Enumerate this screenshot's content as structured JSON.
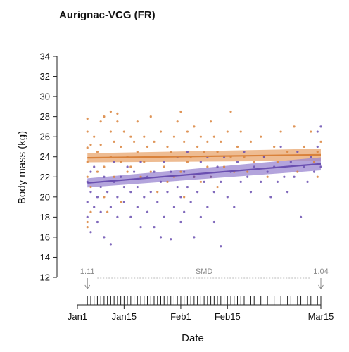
{
  "chart_data": {
    "type": "scatter",
    "title": "Aurignac-VCG (FR)",
    "xlabel": "Date",
    "ylabel": "Body mass (kg)",
    "xlim": [
      0,
      73
    ],
    "ylim": [
      12,
      34
    ],
    "y_ticks": [
      12,
      14,
      16,
      18,
      20,
      22,
      24,
      26,
      28,
      30,
      32,
      34
    ],
    "x_ticks": [
      {
        "day": 0,
        "label": "Jan1"
      },
      {
        "day": 14,
        "label": "Jan15"
      },
      {
        "day": 31,
        "label": "Feb1"
      },
      {
        "day": 45,
        "label": "Feb15"
      },
      {
        "day": 73,
        "label": "Mar15"
      }
    ],
    "colors": {
      "orange": "#d9823b",
      "purple": "#6a4fb0",
      "orange_band": "#e8a56e",
      "purple_band": "#9a86d0",
      "annot": "#8a8a8a"
    },
    "series": [
      {
        "color": "orange",
        "trend": {
          "x0": 3,
          "y0": 23.9,
          "x1": 73,
          "y1": 24.2
        },
        "band_halfwidth": [
          0.45,
          0.6
        ],
        "points": [
          [
            3,
            27.8
          ],
          [
            3,
            26.5
          ],
          [
            4,
            25.2
          ],
          [
            3,
            24.9
          ],
          [
            3,
            23.5
          ],
          [
            3,
            22.0
          ],
          [
            4,
            21.0
          ],
          [
            4,
            18.5
          ],
          [
            3,
            17.5
          ],
          [
            3,
            17.0
          ],
          [
            5,
            26.0
          ],
          [
            6,
            24.5
          ],
          [
            6,
            22.5
          ],
          [
            7,
            27.5
          ],
          [
            7,
            25.2
          ],
          [
            8,
            28.0
          ],
          [
            8,
            23.0
          ],
          [
            8,
            20.0
          ],
          [
            9,
            18.5
          ],
          [
            10,
            28.5
          ],
          [
            10,
            26.5
          ],
          [
            10,
            24.0
          ],
          [
            11,
            25.5
          ],
          [
            11,
            22.0
          ],
          [
            12,
            27.5
          ],
          [
            12,
            28.3
          ],
          [
            13,
            25.0
          ],
          [
            13,
            23.5
          ],
          [
            13,
            19.5
          ],
          [
            14,
            26.5
          ],
          [
            15,
            24.0
          ],
          [
            15,
            22.5
          ],
          [
            16,
            26.0
          ],
          [
            16,
            23.0
          ],
          [
            17,
            25.5
          ],
          [
            18,
            27.5
          ],
          [
            18,
            24.5
          ],
          [
            19,
            22.0
          ],
          [
            20,
            26.0
          ],
          [
            20,
            23.5
          ],
          [
            21,
            25.0
          ],
          [
            22,
            28.0
          ],
          [
            22,
            22.5
          ],
          [
            23,
            25.5
          ],
          [
            24,
            24.0
          ],
          [
            24,
            20.5
          ],
          [
            25,
            26.5
          ],
          [
            26,
            23.0
          ],
          [
            27,
            25.0
          ],
          [
            27,
            21.5
          ],
          [
            28,
            24.5
          ],
          [
            29,
            26.0
          ],
          [
            29,
            22.0
          ],
          [
            30,
            27.5
          ],
          [
            30,
            24.0
          ],
          [
            31,
            28.5
          ],
          [
            31,
            22.5
          ],
          [
            32,
            25.5
          ],
          [
            32,
            20.0
          ],
          [
            33,
            26.5
          ],
          [
            33,
            23.5
          ],
          [
            34,
            24.0
          ],
          [
            35,
            27.0
          ],
          [
            35,
            22.0
          ],
          [
            36,
            25.0
          ],
          [
            37,
            26.0
          ],
          [
            37,
            21.5
          ],
          [
            38,
            24.5
          ],
          [
            39,
            25.5
          ],
          [
            39,
            23.0
          ],
          [
            40,
            27.5
          ],
          [
            40,
            22.0
          ],
          [
            41,
            26.0
          ],
          [
            42,
            24.5
          ],
          [
            42,
            21.0
          ],
          [
            43,
            25.5
          ],
          [
            44,
            23.0
          ],
          [
            45,
            26.5
          ],
          [
            46,
            28.5
          ],
          [
            46,
            24.0
          ],
          [
            47,
            22.5
          ],
          [
            48,
            25.0
          ],
          [
            49,
            26.5
          ],
          [
            50,
            24.0
          ],
          [
            51,
            22.5
          ],
          [
            52,
            25.5
          ],
          [
            53,
            23.5
          ],
          [
            55,
            26.0
          ],
          [
            56,
            24.0
          ],
          [
            57,
            22.0
          ],
          [
            59,
            25.0
          ],
          [
            60,
            23.5
          ],
          [
            61,
            26.5
          ],
          [
            63,
            24.5
          ],
          [
            65,
            27.0
          ],
          [
            66,
            22.5
          ],
          [
            68,
            25.0
          ],
          [
            70,
            26.5
          ],
          [
            71,
            23.5
          ],
          [
            72,
            24.5
          ],
          [
            72,
            22.0
          ],
          [
            73,
            25.5
          ]
        ]
      },
      {
        "color": "purple",
        "trend": {
          "x0": 3,
          "y0": 21.4,
          "x1": 73,
          "y1": 23.3
        },
        "band_halfwidth": [
          0.45,
          0.65
        ],
        "points": [
          [
            3,
            21.5
          ],
          [
            3,
            19.5
          ],
          [
            3,
            18.0
          ],
          [
            4,
            20.5
          ],
          [
            4,
            22.5
          ],
          [
            4,
            16.5
          ],
          [
            5,
            19.0
          ],
          [
            5,
            23.0
          ],
          [
            6,
            20.0
          ],
          [
            6,
            17.5
          ],
          [
            7,
            21.0
          ],
          [
            7,
            18.5
          ],
          [
            8,
            22.0
          ],
          [
            8,
            16.0
          ],
          [
            9,
            20.5
          ],
          [
            10,
            19.0
          ],
          [
            10,
            15.3
          ],
          [
            11,
            21.5
          ],
          [
            11,
            23.5
          ],
          [
            12,
            18.0
          ],
          [
            12,
            20.0
          ],
          [
            13,
            22.0
          ],
          [
            14,
            19.5
          ],
          [
            14,
            21.0
          ],
          [
            15,
            23.0
          ],
          [
            16,
            20.5
          ],
          [
            16,
            18.0
          ],
          [
            17,
            22.5
          ],
          [
            18,
            21.0
          ],
          [
            18,
            19.0
          ],
          [
            19,
            23.5
          ],
          [
            19,
            17.0
          ],
          [
            20,
            20.0
          ],
          [
            21,
            22.0
          ],
          [
            21,
            18.5
          ],
          [
            22,
            24.0
          ],
          [
            22,
            20.5
          ],
          [
            23,
            17.0
          ],
          [
            23,
            22.5
          ],
          [
            24,
            19.5
          ],
          [
            25,
            21.5
          ],
          [
            25,
            16.0
          ],
          [
            26,
            23.5
          ],
          [
            26,
            18.0
          ],
          [
            27,
            20.5
          ],
          [
            28,
            22.5
          ],
          [
            28,
            15.8
          ],
          [
            29,
            19.0
          ],
          [
            30,
            21.0
          ],
          [
            30,
            24.0
          ],
          [
            31,
            20.0
          ],
          [
            31,
            17.5
          ],
          [
            32,
            22.5
          ],
          [
            32,
            18.5
          ],
          [
            33,
            21.0
          ],
          [
            33,
            24.5
          ],
          [
            34,
            19.5
          ],
          [
            35,
            22.0
          ],
          [
            35,
            16.0
          ],
          [
            36,
            20.5
          ],
          [
            37,
            23.5
          ],
          [
            37,
            18.0
          ],
          [
            38,
            21.5
          ],
          [
            39,
            24.0
          ],
          [
            39,
            19.0
          ],
          [
            40,
            22.0
          ],
          [
            41,
            20.5
          ],
          [
            41,
            17.5
          ],
          [
            42,
            23.0
          ],
          [
            43,
            21.5
          ],
          [
            43,
            15.1
          ],
          [
            44,
            24.0
          ],
          [
            45,
            20.0
          ],
          [
            46,
            22.5
          ],
          [
            47,
            19.0
          ],
          [
            48,
            23.5
          ],
          [
            49,
            21.5
          ],
          [
            50,
            24.5
          ],
          [
            51,
            22.0
          ],
          [
            52,
            20.5
          ],
          [
            53,
            23.0
          ],
          [
            55,
            21.5
          ],
          [
            56,
            24.0
          ],
          [
            57,
            22.5
          ],
          [
            58,
            20.0
          ],
          [
            59,
            23.0
          ],
          [
            60,
            21.5
          ],
          [
            61,
            25.0
          ],
          [
            62,
            22.0
          ],
          [
            63,
            20.5
          ],
          [
            64,
            23.5
          ],
          [
            65,
            22.0
          ],
          [
            66,
            24.5
          ],
          [
            67,
            18.0
          ],
          [
            68,
            23.0
          ],
          [
            69,
            21.5
          ],
          [
            70,
            24.0
          ],
          [
            71,
            22.5
          ],
          [
            72,
            25.0
          ],
          [
            72,
            26.5
          ],
          [
            73,
            27.0
          ],
          [
            73,
            23.0
          ]
        ]
      }
    ],
    "annotations": {
      "left_value": "1.11",
      "right_value": "1.04",
      "middle_label": "SMD",
      "left_day": 3,
      "right_day": 73,
      "rug_days": [
        3,
        4,
        5,
        6,
        7,
        8,
        9,
        10,
        11,
        12,
        13,
        14,
        15,
        16,
        17,
        18,
        19,
        20,
        21,
        22,
        23,
        24,
        25,
        26,
        27,
        28,
        29,
        30,
        31,
        32,
        33,
        34,
        35,
        36,
        37,
        38,
        39,
        40,
        41,
        42,
        43,
        44,
        45,
        46,
        47,
        48,
        49,
        50,
        52,
        53,
        55,
        57,
        59,
        61,
        63,
        64,
        66,
        67,
        69,
        70,
        72,
        73
      ]
    }
  }
}
